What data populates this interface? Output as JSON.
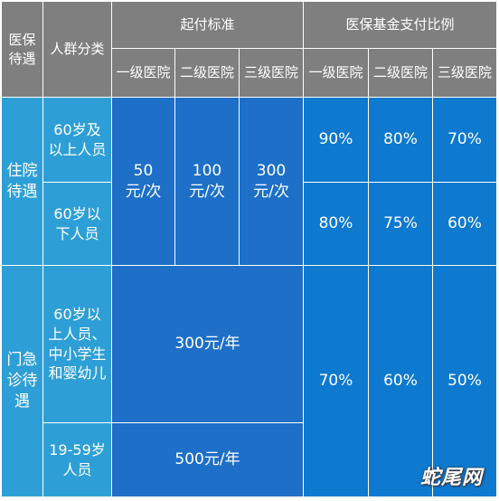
{
  "header": {
    "category": "医保\n待遇",
    "population": "人群分类",
    "deductible_group": "起付标准",
    "reimbursement_group": "医保基金支付比例",
    "level1": "一级医院",
    "level2": "二级医院",
    "level3": "三级医院"
  },
  "inpatient": {
    "label": "住院\n待遇",
    "rows": [
      {
        "population": "60岁及\n以上人员",
        "ratio_l1": "90%",
        "ratio_l2": "80%",
        "ratio_l3": "70%"
      },
      {
        "population": "60岁以\n下人员",
        "ratio_l1": "80%",
        "ratio_l2": "75%",
        "ratio_l3": "60%"
      }
    ],
    "deductible_l1": "50\n元/次",
    "deductible_l2": "100\n元/次",
    "deductible_l3": "300\n元/次"
  },
  "outpatient": {
    "label": "门急\n诊待\n遇",
    "rows": [
      {
        "population": "60岁以\n上人员、\n中小学生\n和婴幼儿",
        "deductible": "300元/年"
      },
      {
        "population": "19-59岁\n人员",
        "deductible": "500元/年"
      }
    ],
    "ratio_l1": "70%",
    "ratio_l2": "60%",
    "ratio_l3": "50%"
  },
  "watermark": "蛇尾网",
  "colors": {
    "header_bg": "#7f7f7f",
    "category_bg": "#2e9fd6",
    "deductible_bg": "#1d6fc7",
    "ratio_bg": "#0d79cf"
  }
}
